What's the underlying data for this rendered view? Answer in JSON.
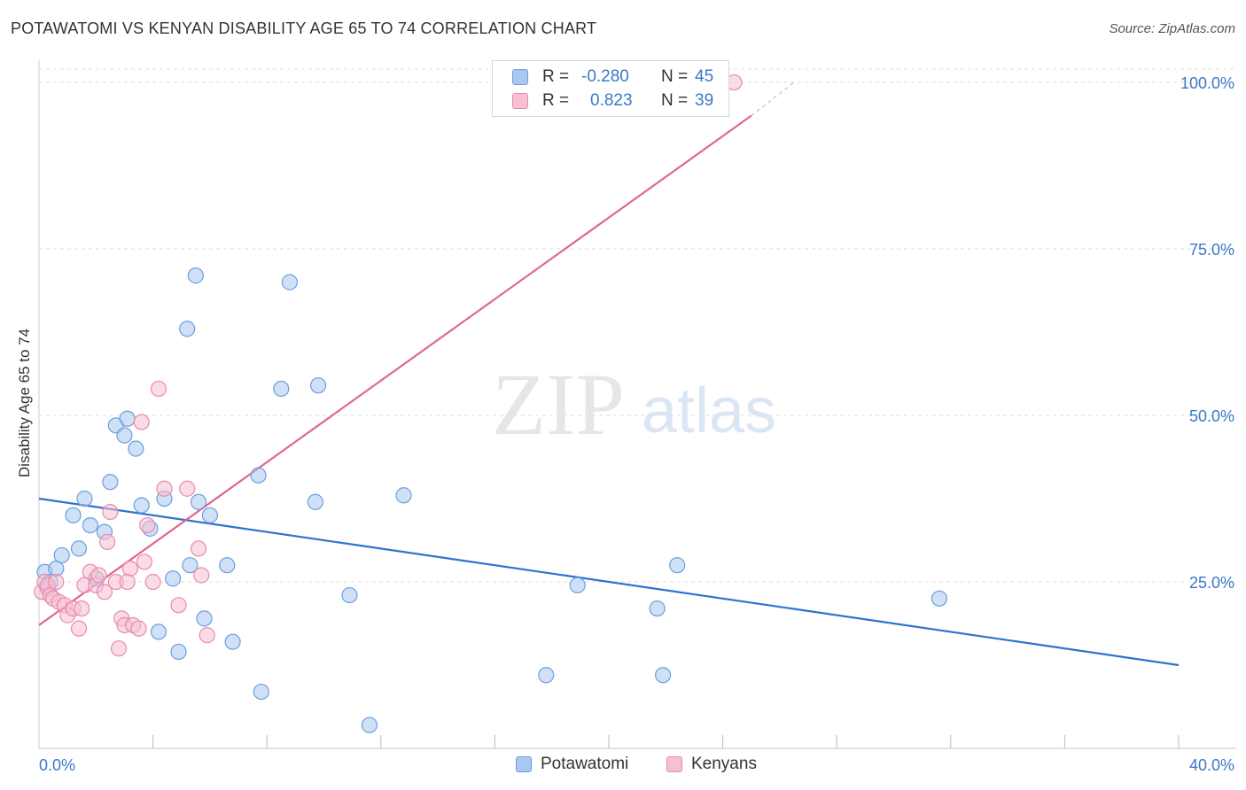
{
  "title": "POTAWATOMI VS KENYAN DISABILITY AGE 65 TO 74 CORRELATION CHART",
  "source": "Source: ZipAtlas.com",
  "watermark": {
    "zip": "ZIP",
    "atlas": "atlas"
  },
  "legend_top": {
    "rows": [
      {
        "r_label": "R =",
        "r_value": "-0.280",
        "n_label": "N =",
        "n_value": "45",
        "color": "#a9c8f0",
        "border": "#6a9fdc"
      },
      {
        "r_label": "R =",
        "r_value": "0.823",
        "n_label": "N =",
        "n_value": "39",
        "color": "#f7bfd2",
        "border": "#e88aab"
      }
    ]
  },
  "legend_bottom": [
    {
      "label": "Potawatomi",
      "color": "#a9c8f0",
      "border": "#6a9fdc"
    },
    {
      "label": "Kenyans",
      "color": "#f7bfd2",
      "border": "#e88aab"
    }
  ],
  "chart_data": {
    "type": "scatter",
    "title": "POTAWATOMI VS KENYAN DISABILITY AGE 65 TO 74 CORRELATION CHART",
    "xlabel": "",
    "ylabel": "Disability Age 65 to 74",
    "xlim": [
      0,
      40
    ],
    "ylim": [
      0,
      102
    ],
    "x_tick_labels": [
      {
        "value": 0,
        "label": "0.0%"
      },
      {
        "value": 40,
        "label": "40.0%"
      }
    ],
    "y_tick_labels": [
      {
        "value": 25,
        "label": "25.0%"
      },
      {
        "value": 50,
        "label": "50.0%"
      },
      {
        "value": 75,
        "label": "75.0%"
      },
      {
        "value": 100,
        "label": "100.0%"
      }
    ],
    "x_minor_ticks": [
      4,
      8,
      12,
      16,
      20,
      24,
      28,
      32,
      36,
      40
    ],
    "grid": true,
    "series": [
      {
        "name": "Potawatomi",
        "color": "#6a9fdc",
        "fill": "#a9c8f0",
        "trend": {
          "x": [
            0,
            40
          ],
          "y": [
            37.5,
            12.5
          ],
          "color": "#2f72d0"
        },
        "points": [
          [
            0.2,
            26.5
          ],
          [
            0.4,
            25.0
          ],
          [
            0.6,
            27.0
          ],
          [
            0.8,
            29.0
          ],
          [
            1.2,
            35.0
          ],
          [
            1.4,
            30.0
          ],
          [
            1.6,
            37.5
          ],
          [
            1.8,
            33.5
          ],
          [
            2.0,
            25.5
          ],
          [
            2.3,
            32.5
          ],
          [
            2.5,
            40.0
          ],
          [
            2.7,
            48.5
          ],
          [
            3.0,
            47.0
          ],
          [
            3.1,
            49.5
          ],
          [
            3.4,
            45.0
          ],
          [
            3.6,
            36.5
          ],
          [
            3.9,
            33.0
          ],
          [
            4.2,
            17.5
          ],
          [
            4.4,
            37.5
          ],
          [
            4.7,
            25.5
          ],
          [
            4.9,
            14.5
          ],
          [
            5.2,
            63.0
          ],
          [
            5.3,
            27.5
          ],
          [
            5.5,
            71.0
          ],
          [
            5.6,
            37.0
          ],
          [
            5.8,
            19.5
          ],
          [
            6.0,
            35.0
          ],
          [
            6.6,
            27.5
          ],
          [
            6.8,
            16.0
          ],
          [
            7.7,
            41.0
          ],
          [
            7.8,
            8.5
          ],
          [
            8.5,
            54.0
          ],
          [
            8.8,
            70.0
          ],
          [
            9.7,
            37.0
          ],
          [
            9.8,
            54.5
          ],
          [
            10.9,
            23.0
          ],
          [
            11.6,
            3.5
          ],
          [
            12.8,
            38.0
          ],
          [
            17.8,
            11.0
          ],
          [
            18.9,
            24.5
          ],
          [
            21.7,
            21.0
          ],
          [
            21.9,
            11.0
          ],
          [
            22.4,
            27.5
          ],
          [
            31.6,
            22.5
          ],
          [
            0.3,
            24.0
          ]
        ]
      },
      {
        "name": "Kenyans",
        "color": "#e88aab",
        "fill": "#f7bfd2",
        "trend": {
          "x": [
            0,
            25
          ],
          "y": [
            18.5,
            95.0
          ],
          "color": "#e0668f",
          "dashed_extension": {
            "x": [
              25,
              26.5
            ],
            "y": [
              95.0,
              100.0
            ]
          }
        },
        "points": [
          [
            0.1,
            23.5
          ],
          [
            0.2,
            25.0
          ],
          [
            0.3,
            24.5
          ],
          [
            0.4,
            23.0
          ],
          [
            0.5,
            22.5
          ],
          [
            0.6,
            25.0
          ],
          [
            0.7,
            22.0
          ],
          [
            0.9,
            21.5
          ],
          [
            1.0,
            20.0
          ],
          [
            1.2,
            21.0
          ],
          [
            1.4,
            18.0
          ],
          [
            1.5,
            21.0
          ],
          [
            1.6,
            24.5
          ],
          [
            1.8,
            26.5
          ],
          [
            2.0,
            24.5
          ],
          [
            2.1,
            26.0
          ],
          [
            2.3,
            23.5
          ],
          [
            2.4,
            31.0
          ],
          [
            2.5,
            35.5
          ],
          [
            2.7,
            25.0
          ],
          [
            2.8,
            15.0
          ],
          [
            2.9,
            19.5
          ],
          [
            3.0,
            18.5
          ],
          [
            3.2,
            27.0
          ],
          [
            3.3,
            18.5
          ],
          [
            3.5,
            18.0
          ],
          [
            3.6,
            49.0
          ],
          [
            3.7,
            28.0
          ],
          [
            3.8,
            33.5
          ],
          [
            4.0,
            25.0
          ],
          [
            4.2,
            54.0
          ],
          [
            4.4,
            39.0
          ],
          [
            4.9,
            21.5
          ],
          [
            5.2,
            39.0
          ],
          [
            5.6,
            30.0
          ],
          [
            5.7,
            26.0
          ],
          [
            5.9,
            17.0
          ],
          [
            3.1,
            25.0
          ],
          [
            24.4,
            100.0
          ]
        ]
      }
    ]
  }
}
